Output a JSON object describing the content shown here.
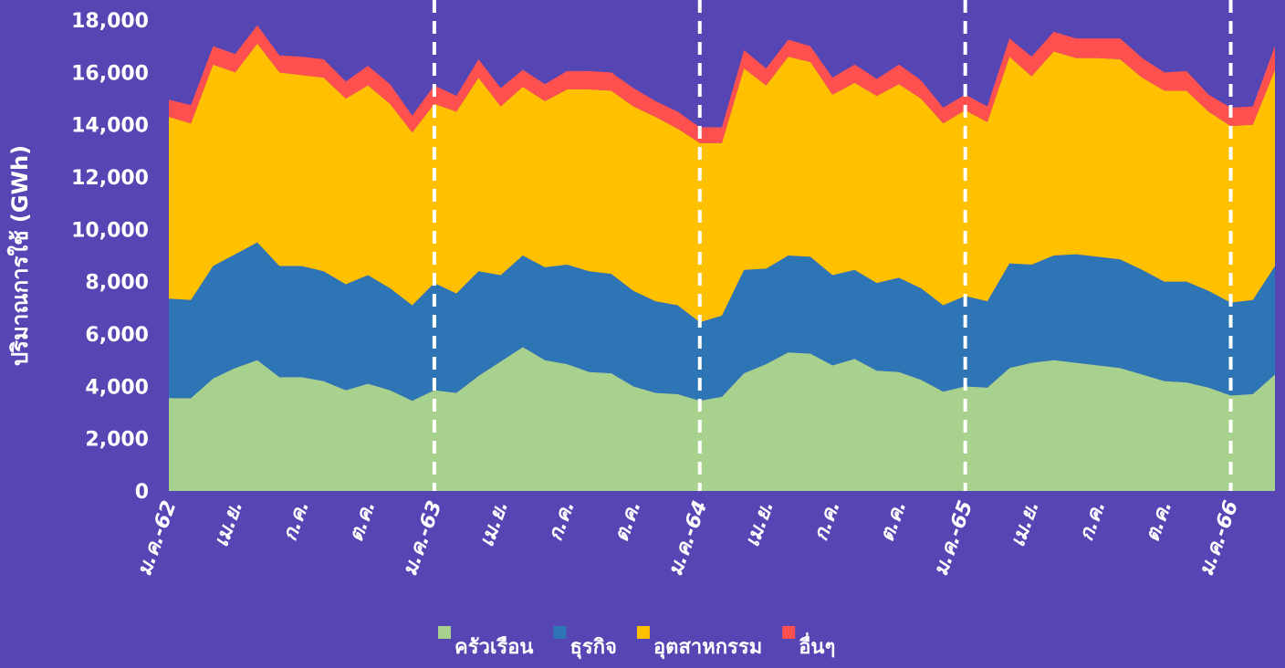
{
  "chart_data": {
    "type": "stacked_area",
    "y_label": "ปริมาณการใช้ (GWh)",
    "categories": [
      "ม.ค.-62",
      null,
      null,
      "เม.ย.",
      null,
      null,
      "ก.ค.",
      null,
      null,
      "ต.ค.",
      null,
      null,
      "ม.ค.-63",
      null,
      null,
      "เม.ย.",
      null,
      null,
      "ก.ค.",
      null,
      null,
      "ต.ค.",
      null,
      null,
      "ม.ค.-64",
      null,
      null,
      "เม.ย.",
      null,
      null,
      "ก.ค.",
      null,
      null,
      "ต.ค.",
      null,
      null,
      "ม.ค.-65",
      null,
      null,
      "เม.ย.",
      null,
      null,
      "ก.ค.",
      null,
      null,
      "ต.ค.",
      null,
      null,
      "ม.ค.-66",
      null,
      null
    ],
    "series": [
      {
        "name": "ครัวเรือน",
        "color": "#a9d18e",
        "values": [
          3550,
          3550,
          4300,
          4700,
          5000,
          4350,
          4350,
          4200,
          3850,
          4100,
          3850,
          3450,
          3850,
          3750,
          4400,
          4950,
          5500,
          5000,
          4850,
          4550,
          4500,
          4000,
          3750,
          3700,
          3450,
          3600,
          4500,
          4850,
          5300,
          5250,
          4800,
          5050,
          4600,
          4550,
          4250,
          3800,
          4000,
          3950,
          4700,
          4900,
          5000,
          4900,
          4800,
          4700,
          4450,
          4200,
          4150,
          3950,
          3650,
          3700,
          4450
        ]
      },
      {
        "name": "ธุรกิจ",
        "color": "#2e75b6",
        "values": [
          3800,
          3750,
          4300,
          4350,
          4500,
          4250,
          4250,
          4200,
          4050,
          4150,
          3900,
          3650,
          4100,
          3800,
          4000,
          3300,
          3500,
          3550,
          3800,
          3850,
          3800,
          3650,
          3500,
          3400,
          3000,
          3100,
          3950,
          3650,
          3700,
          3700,
          3450,
          3400,
          3350,
          3600,
          3500,
          3300,
          3450,
          3300,
          4000,
          3750,
          4000,
          4150,
          4150,
          4150,
          4000,
          3800,
          3850,
          3700,
          3550,
          3600,
          4150
        ]
      },
      {
        "name": "อุตสาหกรรม",
        "color": "#ffc000",
        "values": [
          6950,
          6750,
          7700,
          6950,
          7600,
          7400,
          7300,
          7400,
          7100,
          7250,
          7050,
          6600,
          6850,
          6950,
          7400,
          6450,
          6450,
          6350,
          6700,
          6950,
          7000,
          7050,
          7050,
          6750,
          6850,
          6600,
          7700,
          7000,
          7600,
          7450,
          6900,
          7150,
          7150,
          7400,
          7250,
          6950,
          7100,
          6850,
          7900,
          7200,
          7800,
          7500,
          7600,
          7650,
          7350,
          7300,
          7300,
          6850,
          6750,
          6700,
          7500
        ]
      },
      {
        "name": "อื่นๆ",
        "color": "#ff5050",
        "values": [
          650,
          700,
          700,
          700,
          700,
          650,
          700,
          700,
          650,
          750,
          750,
          650,
          700,
          600,
          700,
          700,
          650,
          650,
          700,
          700,
          700,
          700,
          600,
          650,
          600,
          600,
          700,
          650,
          650,
          600,
          650,
          700,
          650,
          750,
          700,
          600,
          600,
          600,
          700,
          750,
          750,
          750,
          750,
          800,
          750,
          700,
          750,
          650,
          700,
          700,
          900
        ]
      }
    ],
    "ylim": [
      0,
      18000
    ],
    "yticks": [
      0,
      {
        "value": 2000,
        "label": "2,000"
      },
      {
        "value": 4000,
        "label": "4,000"
      },
      {
        "value": 6000,
        "label": "6,000"
      },
      {
        "value": 8000,
        "label": "8,000"
      },
      {
        "value": 10000,
        "label": "10,000"
      },
      {
        "value": 12000,
        "label": "12,000"
      },
      {
        "value": 14000,
        "label": "14,000"
      },
      {
        "value": 16000,
        "label": "16,000"
      },
      {
        "value": 18000,
        "label": "18,000"
      }
    ],
    "legend": "bottom"
  }
}
